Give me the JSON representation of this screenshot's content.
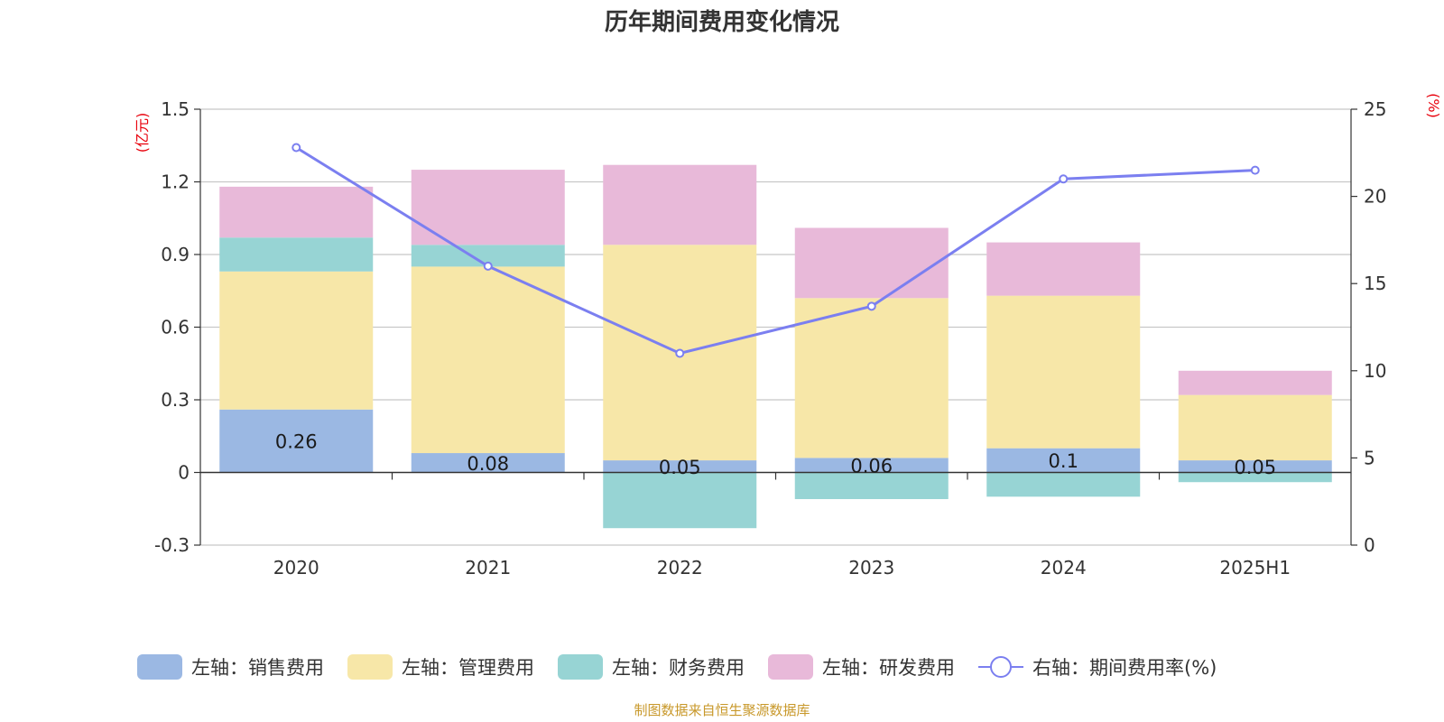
{
  "chart_data": {
    "type": "bar",
    "title": "历年期间费用变化情况",
    "categories": [
      "2020",
      "2021",
      "2022",
      "2023",
      "2024",
      "2025H1"
    ],
    "left_axis": {
      "unit": "(亿元)",
      "ylim": [
        -0.3,
        1.5
      ],
      "ticks": [
        -0.3,
        0,
        0.3,
        0.6,
        0.9,
        1.2,
        1.5
      ],
      "tick_labels": [
        "-0.3",
        "0",
        "0.3",
        "0.6",
        "0.9",
        "1.2",
        "1.5"
      ]
    },
    "right_axis": {
      "unit": "(%)",
      "ylim": [
        0,
        25
      ],
      "ticks": [
        0,
        5,
        10,
        15,
        20,
        25
      ],
      "tick_labels": [
        "0",
        "5",
        "10",
        "15",
        "20",
        "25"
      ]
    },
    "series": [
      {
        "name": "左轴：销售费用",
        "type": "bar",
        "axis": "left",
        "color": "#9bb8e3",
        "values": [
          0.26,
          0.08,
          0.05,
          0.06,
          0.1,
          0.05
        ],
        "labels": [
          "0.26",
          "0.08",
          "0.05",
          "0.06",
          "0.1",
          "0.05"
        ]
      },
      {
        "name": "左轴：管理费用",
        "type": "bar",
        "axis": "left",
        "color": "#f7e7a8",
        "values": [
          0.57,
          0.77,
          0.89,
          0.66,
          0.63,
          0.27
        ]
      },
      {
        "name": "左轴：财务费用",
        "type": "bar",
        "axis": "left",
        "color": "#97d4d4",
        "values": [
          0.14,
          0.09,
          -0.23,
          -0.11,
          -0.1,
          -0.04
        ]
      },
      {
        "name": "左轴：研发费用",
        "type": "bar",
        "axis": "left",
        "color": "#e8b9d9",
        "values": [
          0.21,
          0.31,
          0.33,
          0.29,
          0.22,
          0.1
        ]
      },
      {
        "name": "右轴：期间费用率(%)",
        "type": "line",
        "axis": "right",
        "color": "#7b7ff0",
        "values": [
          22.8,
          16.0,
          11.0,
          13.7,
          21.0,
          21.5
        ]
      }
    ],
    "grid": true,
    "legend_position": "bottom"
  },
  "source": "制图数据来自恒生聚源数据库"
}
